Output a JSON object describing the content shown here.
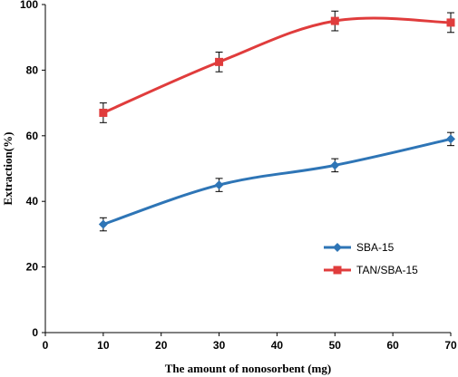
{
  "chart_data": {
    "type": "line",
    "title": "",
    "xlabel": "The amount of nonosorbent (mg)",
    "ylabel": "Extraction(%)",
    "xlim": [
      0,
      70
    ],
    "ylim": [
      0,
      100
    ],
    "xticks": [
      0,
      10,
      20,
      30,
      40,
      50,
      60,
      70
    ],
    "yticks": [
      0,
      20,
      40,
      60,
      80,
      100
    ],
    "grid": false,
    "legend_position": "lower-right",
    "x": [
      10,
      30,
      50,
      70
    ],
    "series": [
      {
        "name": "SBA-15",
        "values": [
          33,
          45,
          51,
          59
        ],
        "errors": [
          2,
          2,
          2,
          2
        ],
        "color": "#2E75B6",
        "marker": "diamond"
      },
      {
        "name": "TAN/SBA-15",
        "values": [
          67,
          82.5,
          95,
          94.5
        ],
        "errors": [
          3,
          3,
          3,
          3
        ],
        "color": "#E03C3C",
        "marker": "square"
      }
    ]
  }
}
